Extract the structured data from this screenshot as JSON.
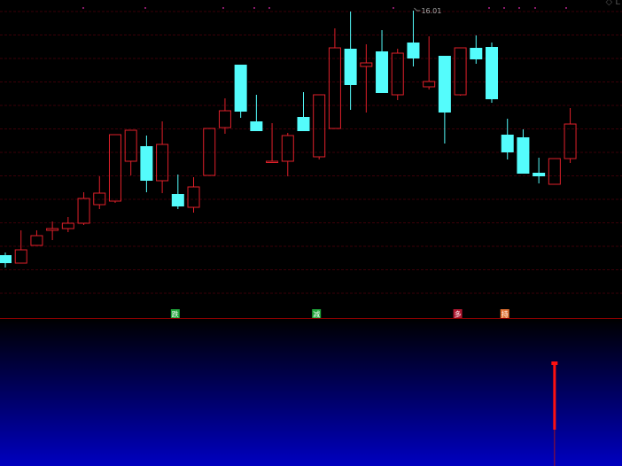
{
  "corner_label": "◇ L",
  "colors": {
    "up": "#e0202a",
    "down": "#54fcfc",
    "grid": "#3a0008",
    "separator": "#8a0000",
    "top_markers": "#8a1a6a",
    "signal_bear": "#1fa63a",
    "signal_bull_1": "#b01830",
    "signal_bull_2": "#e07030",
    "indicator_bar": "#ff1010",
    "panel_gradient_top": "#000000",
    "panel_gradient_bottom": "#0000c0"
  },
  "chart_data": {
    "type": "candlestick",
    "max_label": "16.01",
    "grid": true,
    "candles": [
      {
        "o": 10.49,
        "c": 10.31,
        "h": 10.55,
        "l": 10.21
      },
      {
        "o": 10.31,
        "c": 10.61,
        "h": 11.05,
        "l": 10.31
      },
      {
        "o": 10.71,
        "c": 10.93,
        "h": 11.05,
        "l": 10.71
      },
      {
        "o": 11.05,
        "c": 11.09,
        "h": 11.25,
        "l": 10.83
      },
      {
        "o": 11.09,
        "c": 11.21,
        "h": 11.35,
        "l": 11.01
      },
      {
        "o": 11.21,
        "c": 11.77,
        "h": 11.91,
        "l": 11.17
      },
      {
        "o": 11.63,
        "c": 11.89,
        "h": 12.27,
        "l": 11.53
      },
      {
        "o": 11.71,
        "c": 13.21,
        "h": 13.21,
        "l": 11.67
      },
      {
        "o": 12.61,
        "c": 13.31,
        "h": 13.31,
        "l": 12.29
      },
      {
        "o": 12.95,
        "c": 12.17,
        "h": 13.19,
        "l": 11.91
      },
      {
        "o": 12.17,
        "c": 12.99,
        "h": 13.51,
        "l": 11.89
      },
      {
        "o": 11.87,
        "c": 11.59,
        "h": 12.31,
        "l": 11.53
      },
      {
        "o": 11.57,
        "c": 12.03,
        "h": 12.25,
        "l": 11.45
      },
      {
        "o": 12.29,
        "c": 13.35,
        "h": 13.35,
        "l": 12.29
      },
      {
        "o": 13.37,
        "c": 13.75,
        "h": 14.03,
        "l": 13.23
      },
      {
        "o": 14.79,
        "c": 13.73,
        "h": 14.79,
        "l": 13.59
      },
      {
        "o": 13.51,
        "c": 13.29,
        "h": 14.11,
        "l": 13.29
      },
      {
        "o": 12.59,
        "c": 12.61,
        "h": 13.47,
        "l": 12.59
      },
      {
        "o": 12.61,
        "c": 13.19,
        "h": 13.25,
        "l": 12.27
      },
      {
        "o": 13.61,
        "c": 13.29,
        "h": 14.17,
        "l": 13.29
      },
      {
        "o": 12.71,
        "c": 14.11,
        "h": 14.11,
        "l": 12.65
      },
      {
        "o": 13.35,
        "c": 15.17,
        "h": 15.61,
        "l": 13.35
      },
      {
        "o": 15.15,
        "c": 14.33,
        "h": 15.99,
        "l": 13.77
      },
      {
        "o": 14.75,
        "c": 14.83,
        "h": 15.25,
        "l": 13.71
      },
      {
        "o": 15.09,
        "c": 14.15,
        "h": 15.57,
        "l": 14.15
      },
      {
        "o": 14.11,
        "c": 15.05,
        "h": 15.15,
        "l": 13.99
      },
      {
        "o": 15.29,
        "c": 14.93,
        "h": 16.01,
        "l": 14.75
      },
      {
        "o": 14.29,
        "c": 14.41,
        "h": 15.43,
        "l": 14.23
      },
      {
        "o": 14.99,
        "c": 13.71,
        "h": 14.99,
        "l": 13.01
      },
      {
        "o": 14.11,
        "c": 15.17,
        "h": 15.17,
        "l": 14.09
      },
      {
        "o": 15.17,
        "c": 14.91,
        "h": 15.45,
        "l": 14.81
      },
      {
        "o": 15.19,
        "c": 14.01,
        "h": 15.29,
        "l": 13.93
      },
      {
        "o": 13.21,
        "c": 12.81,
        "h": 13.57,
        "l": 12.65
      },
      {
        "o": 13.15,
        "c": 12.33,
        "h": 13.33,
        "l": 12.33
      },
      {
        "o": 12.35,
        "c": 12.27,
        "h": 12.69,
        "l": 12.11
      },
      {
        "o": 12.09,
        "c": 12.67,
        "h": 12.67,
        "l": 12.09
      },
      {
        "o": 12.67,
        "c": 13.45,
        "h": 13.81,
        "l": 12.57
      }
    ],
    "max_index": 26,
    "signals": [
      {
        "index": 11,
        "label": "跌",
        "type": "bear"
      },
      {
        "index": 20,
        "label": "减",
        "type": "bear"
      },
      {
        "index": 29,
        "label": "多",
        "type": "bull_1"
      },
      {
        "index": 32,
        "label": "持",
        "type": "bull_2"
      }
    ],
    "indicator": {
      "bar_index": 35
    }
  }
}
